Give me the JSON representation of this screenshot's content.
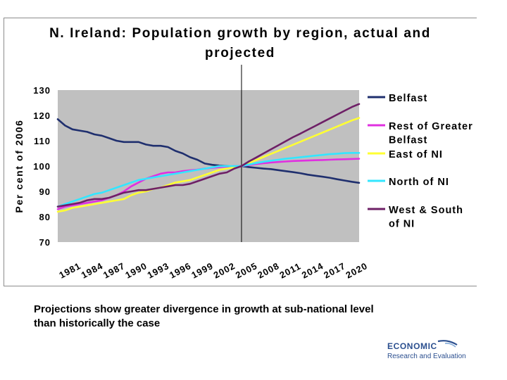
{
  "chart_data": {
    "type": "line",
    "title_lines": [
      "N. Ireland: Population growth by region, actual and",
      "projected"
    ],
    "ylabel": "Per cent of 2006",
    "xlabel": "",
    "ylim": [
      70,
      130
    ],
    "yticks": [
      70,
      80,
      90,
      100,
      110,
      120,
      130
    ],
    "xlim": [
      1981,
      2022
    ],
    "xticks": [
      "1981",
      "1984",
      "1987",
      "1990",
      "1993",
      "1996",
      "1999",
      "2002",
      "2005",
      "2008",
      "2011",
      "2014",
      "2017",
      "2020"
    ],
    "vertical_line_at": 2006,
    "grid": false,
    "legend_position": "right",
    "x": [
      1981,
      1982,
      1983,
      1984,
      1985,
      1986,
      1987,
      1988,
      1989,
      1990,
      1991,
      1992,
      1993,
      1994,
      1995,
      1996,
      1997,
      1998,
      1999,
      2000,
      2001,
      2002,
      2003,
      2004,
      2005,
      2006,
      2007,
      2008,
      2009,
      2010,
      2011,
      2012,
      2013,
      2014,
      2015,
      2016,
      2017,
      2018,
      2019,
      2020,
      2021,
      2022
    ],
    "series": [
      {
        "name": "Belfast",
        "color": "#1f2f6e",
        "values": [
          118.5,
          116,
          114.5,
          114,
          113.5,
          112.5,
          112,
          111,
          110,
          109.5,
          109.5,
          109.5,
          108.5,
          108,
          108,
          107.5,
          106,
          105,
          103.5,
          102.5,
          101,
          100.5,
          100.2,
          100,
          99.8,
          100,
          99.6,
          99.3,
          99,
          98.8,
          98.4,
          98,
          97.6,
          97.2,
          96.6,
          96.2,
          95.8,
          95.4,
          94.8,
          94.3,
          93.8,
          93.4
        ]
      },
      {
        "name": "Rest of Greater Belfast",
        "color": "#e030e0",
        "values": [
          83,
          84,
          84.5,
          85,
          85.5,
          86,
          86.5,
          87.5,
          88.5,
          90,
          92,
          93.5,
          95,
          96,
          97,
          97.5,
          97.5,
          98,
          98.3,
          98.6,
          99,
          99.3,
          99.6,
          99.8,
          100,
          100,
          100.4,
          100.8,
          101.1,
          101.4,
          101.6,
          101.8,
          102,
          102.1,
          102.2,
          102.3,
          102.4,
          102.5,
          102.6,
          102.7,
          102.8,
          102.9
        ]
      },
      {
        "name": "East of NI",
        "color": "#ffff33",
        "values": [
          82,
          82.5,
          83.5,
          84,
          84.5,
          85,
          85.5,
          86,
          86.5,
          87,
          88.5,
          89.5,
          90,
          91,
          91.5,
          92.5,
          93.5,
          94,
          94.5,
          95.5,
          96.5,
          97.5,
          98.5,
          99,
          99.5,
          100,
          101.2,
          102.4,
          103.6,
          104.8,
          106,
          107.2,
          108.4,
          109.6,
          110.8,
          112,
          113.2,
          114.4,
          115.6,
          116.8,
          118,
          119
        ]
      },
      {
        "name": "North of NI",
        "color": "#33e6ff",
        "values": [
          84,
          85,
          86,
          87,
          88,
          89,
          89.5,
          90.5,
          91.5,
          92.5,
          93.5,
          94.5,
          95,
          95.5,
          96,
          96.5,
          97,
          97.5,
          98,
          98.5,
          99,
          99.5,
          100,
          100,
          100,
          100,
          100.6,
          101.2,
          101.7,
          102.1,
          102.5,
          102.9,
          103.2,
          103.5,
          103.8,
          104.1,
          104.4,
          104.7,
          104.9,
          105.1,
          105.2,
          105.2
        ]
      },
      {
        "name": "West & South of NI",
        "color": "#6e1f66",
        "values": [
          84,
          84.5,
          85,
          85.5,
          86.5,
          87,
          87,
          87.5,
          88.5,
          89.5,
          90,
          90.5,
          90.5,
          91,
          91.5,
          92,
          92.5,
          92.5,
          93,
          94,
          95,
          96,
          97,
          97.5,
          99,
          100,
          101.8,
          103.4,
          105,
          106.6,
          108.2,
          109.8,
          111.4,
          112.8,
          114.3,
          115.8,
          117.3,
          118.8,
          120.3,
          121.8,
          123.3,
          124.5
        ]
      }
    ],
    "legend": [
      {
        "lines": [
          "Belfast"
        ],
        "color": "#1f2f6e"
      },
      {
        "lines": [
          "Rest of Greater",
          "Belfast"
        ],
        "color": "#e030e0"
      },
      {
        "lines": [
          "East of NI"
        ],
        "color": "#ffff33"
      },
      {
        "lines": [
          "North of NI"
        ],
        "color": "#33e6ff"
      },
      {
        "lines": [
          "West & South",
          "of NI"
        ],
        "color": "#6e1f66"
      }
    ]
  },
  "caption": {
    "line1": "Projections show greater divergence in growth at sub-national level",
    "line2": "than historically the case"
  },
  "logo": {
    "line1": "ECONOMIC",
    "line2": "Research and Evaluation",
    "color": "#2b4f8f"
  },
  "colors": {
    "plot_background": "#c0c0c0"
  }
}
